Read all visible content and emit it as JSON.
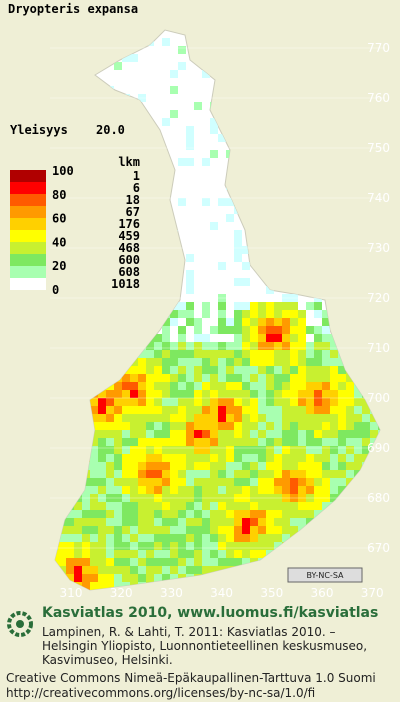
{
  "title": "Dryopteris expansa",
  "frequency": {
    "label": "Yleisyys",
    "value": "20.0"
  },
  "legend": {
    "header": "lkm",
    "scale": [
      "100",
      "80",
      "60",
      "40",
      "20",
      "0"
    ],
    "colors": [
      "#b00000",
      "#ff0000",
      "#ff5a00",
      "#ff9a00",
      "#ffd000",
      "#ffff00",
      "#c8f030",
      "#7ee860",
      "#a8ffb0",
      "#d0ffff",
      "#ffffff"
    ],
    "counts": [
      "1",
      "6",
      "18",
      "67",
      "176",
      "459",
      "468",
      "600",
      "608",
      "1018"
    ]
  },
  "grid": {
    "northing": [
      "770",
      "760",
      "750",
      "740",
      "730",
      "720",
      "710",
      "700",
      "690",
      "680",
      "670"
    ],
    "easting": [
      "310",
      "320",
      "330",
      "340",
      "350",
      "360",
      "370"
    ]
  },
  "license_badge": "BY-NC-SA",
  "footer": {
    "heading": "Kasviatlas 2010, www.luomus.fi/kasviatlas",
    "citation": [
      "Lampinen, R. & Lahti, T. 2011: Kasviatlas 2010. –",
      "Helsingin Yliopisto, Luonnontieteellinen keskusmuseo,",
      "Kasvimuseo, Helsinki."
    ],
    "license": [
      "Creative Commons Nimeä-Epäkaupallinen-Tarttuva 1.0 Suomi",
      "http://creativecommons.org/licenses/by-nc-sa/1.0/fi"
    ]
  }
}
